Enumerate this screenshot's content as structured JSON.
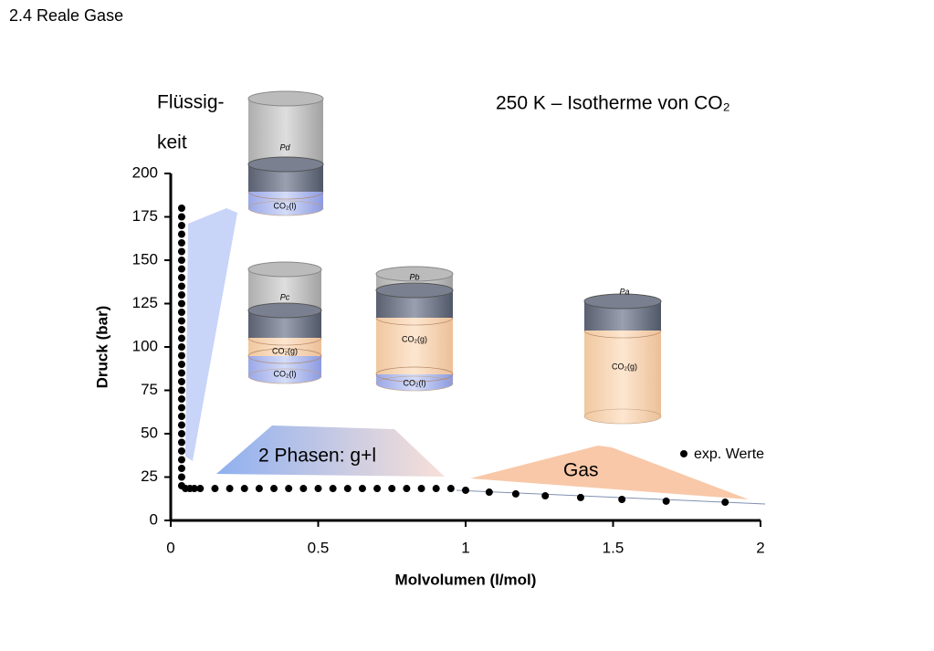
{
  "header": {
    "title": "2.4 Reale Gase"
  },
  "chart_data": {
    "type": "scatter",
    "title": "250 K – Isotherme von CO₂",
    "x_label": "Molvolumen (l/mol)",
    "y_label": "Druck (bar)",
    "xlim": [
      0,
      2
    ],
    "xticks": [
      0,
      0.5,
      1,
      1.5,
      2
    ],
    "ylim": [
      0,
      200
    ],
    "yticks": [
      0,
      25,
      50,
      75,
      100,
      125,
      150,
      175,
      200
    ],
    "grid": false,
    "legend": "right",
    "x": [
      0.037,
      0.037,
      0.037,
      0.037,
      0.037,
      0.037,
      0.037,
      0.037,
      0.037,
      0.037,
      0.037,
      0.037,
      0.037,
      0.037,
      0.037,
      0.037,
      0.037,
      0.037,
      0.037,
      0.037,
      0.037,
      0.037,
      0.037,
      0.037,
      0.037,
      0.037,
      0.037,
      0.037,
      0.037,
      0.037,
      0.037,
      0.037,
      0.037,
      0.05,
      0.065,
      0.08,
      0.1,
      0.15,
      0.2,
      0.25,
      0.3,
      0.35,
      0.4,
      0.45,
      0.5,
      0.55,
      0.6,
      0.65,
      0.7,
      0.75,
      0.8,
      0.85,
      0.9,
      0.95,
      1.0,
      1.08,
      1.17,
      1.27,
      1.39,
      1.53,
      1.68,
      1.88
    ],
    "series": [
      {
        "name": "exp. Werte",
        "color": "#000000",
        "values": [
          180,
          175,
          170,
          165,
          160,
          155,
          150,
          145,
          140,
          135,
          130,
          125,
          120,
          115,
          110,
          105,
          100,
          95,
          90,
          85,
          80,
          75,
          70,
          65,
          60,
          55,
          50,
          45,
          40,
          35,
          30,
          25,
          20,
          18.4,
          18.4,
          18.4,
          18.4,
          18.4,
          18.4,
          18.4,
          18.4,
          18.4,
          18.4,
          18.4,
          18.4,
          18.4,
          18.4,
          18.4,
          18.4,
          18.4,
          18.4,
          18.4,
          18.4,
          18.4,
          17.4,
          16.3,
          15.3,
          14.2,
          13.2,
          12.1,
          11.1,
          10.5
        ]
      }
    ],
    "annotations": [
      "Flüssig-",
      "keit",
      "2 Phasen: g+l",
      "Gas"
    ],
    "cylinders": [
      {
        "labels": [
          "Pd",
          "CO₂(l)"
        ]
      },
      {
        "labels": [
          "Pc",
          "CO₂(g)",
          "CO₂(l)"
        ]
      },
      {
        "labels": [
          "Pb",
          "CO₂(g)",
          "CO₂(l)"
        ]
      },
      {
        "labels": [
          "Pa",
          "CO₂(g)"
        ]
      }
    ]
  }
}
